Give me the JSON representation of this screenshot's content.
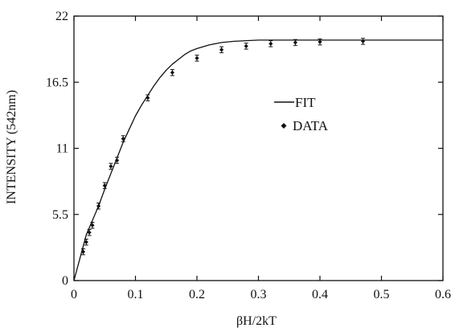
{
  "chart_data": {
    "type": "scatter",
    "xlabel": "βH/2kT",
    "ylabel": "INTENSITY (542nm)",
    "xlim": [
      0,
      0.6
    ],
    "ylim": [
      0,
      22
    ],
    "x_ticks": [
      "0",
      "0.1",
      "0.2",
      "0.3",
      "0.4",
      "0.5",
      "0.6"
    ],
    "y_ticks": [
      "0",
      "5.5",
      "11",
      "16.5",
      "22"
    ],
    "grid": false,
    "legend_position": "center-right",
    "colors": {
      "ink": "#111111"
    },
    "series": [
      {
        "name": "FIT",
        "style": "line",
        "x": [
          0,
          0.01,
          0.02,
          0.03,
          0.04,
          0.05,
          0.06,
          0.07,
          0.08,
          0.09,
          0.1,
          0.11,
          0.12,
          0.13,
          0.14,
          0.15,
          0.16,
          0.17,
          0.18,
          0.19,
          0.2,
          0.22,
          0.24,
          0.26,
          0.28,
          0.3,
          0.33,
          0.36,
          0.4,
          0.45,
          0.5,
          0.55,
          0.6
        ],
        "y": [
          0,
          1.9,
          3.8,
          5.0,
          6.2,
          7.6,
          8.9,
          10.2,
          11.5,
          12.6,
          13.7,
          14.6,
          15.4,
          16.2,
          16.9,
          17.5,
          18.0,
          18.4,
          18.8,
          19.1,
          19.3,
          19.6,
          19.8,
          19.9,
          19.95,
          20.0,
          20.0,
          20.0,
          20.0,
          20.0,
          20.0,
          20.0,
          20.0
        ]
      },
      {
        "name": "DATA",
        "style": "markers",
        "x": [
          0.015,
          0.02,
          0.025,
          0.03,
          0.04,
          0.05,
          0.06,
          0.07,
          0.08,
          0.12,
          0.16,
          0.2,
          0.24,
          0.28,
          0.32,
          0.36,
          0.4,
          0.47
        ],
        "y": [
          2.4,
          3.2,
          4.0,
          4.6,
          6.2,
          7.9,
          9.5,
          10.0,
          11.8,
          15.2,
          17.3,
          18.5,
          19.2,
          19.5,
          19.7,
          19.8,
          19.85,
          19.9
        ],
        "error": 0.25
      }
    ]
  }
}
